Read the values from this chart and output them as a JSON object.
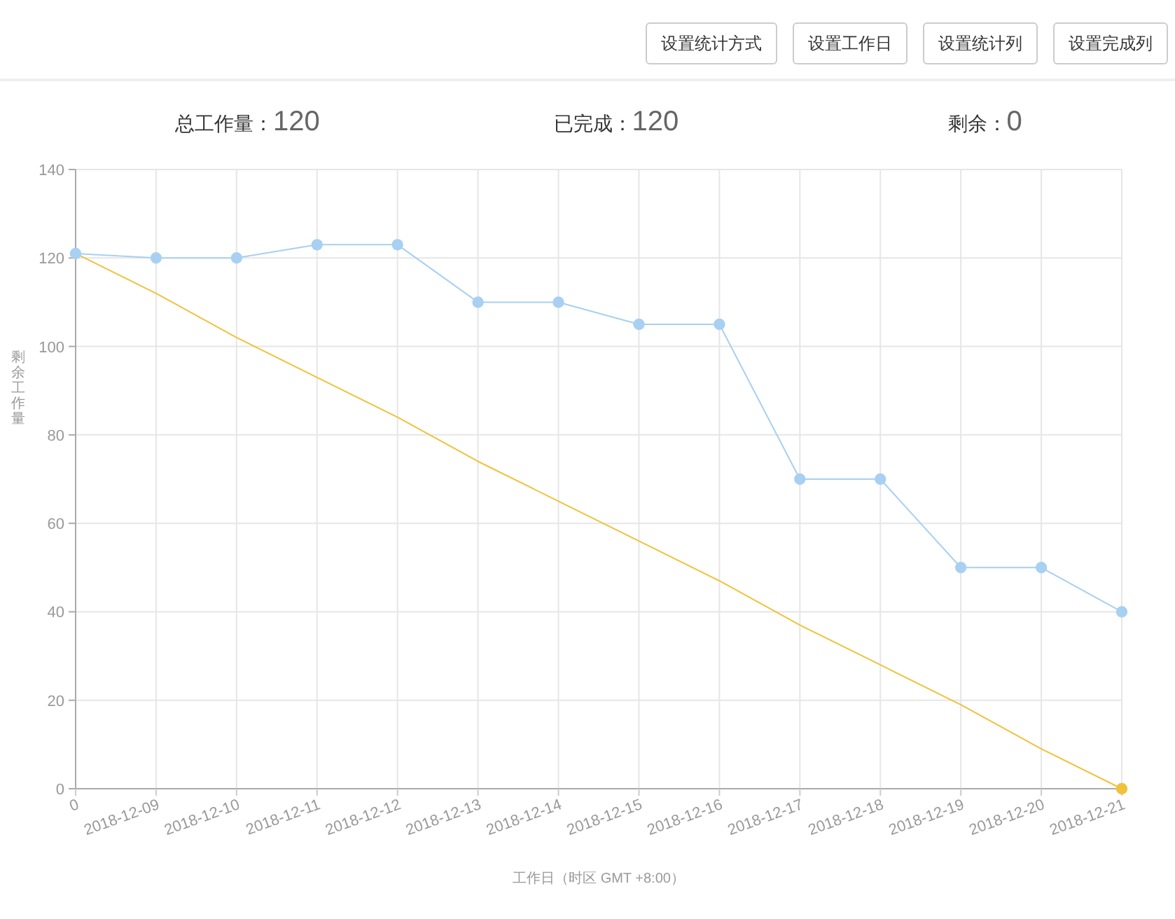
{
  "chart_data": [
    {
      "type": "other",
      "annotations": [
        "设置统计方式",
        "设置工作日",
        "设置统计列",
        "设置完成列"
      ]
    },
    {
      "type": "other",
      "annotations": [
        "总工作量：120",
        "已完成：120",
        "剩余：0"
      ]
    },
    {
      "type": "line",
      "categories": [
        "0",
        "2018-12-09",
        "2018-12-10",
        "2018-12-11",
        "2018-12-12",
        "2018-12-13",
        "2018-12-14",
        "2018-12-15",
        "2018-12-16",
        "2018-12-17",
        "2018-12-18",
        "2018-12-19",
        "2018-12-20",
        "2018-12-21"
      ],
      "xlabel": "工作日（时区 GMT +8:00）",
      "ylabel": "剩余工作量",
      "ylim": [
        0,
        140
      ],
      "yticks": [
        0,
        20,
        40,
        60,
        80,
        100,
        120,
        140
      ],
      "grid": true,
      "line_style": "solid",
      "series": [
        {
          "color": "#f0c23b",
          "values": [
            121,
            112,
            102,
            93,
            84,
            74,
            65,
            56,
            47,
            37,
            28,
            19,
            9,
            0
          ],
          "marker": "none"
        },
        {
          "type": "scatter",
          "color": "#f0c23b",
          "values": [
            null,
            null,
            null,
            null,
            null,
            null,
            null,
            null,
            null,
            null,
            null,
            null,
            null,
            0
          ],
          "marker": "circle"
        },
        {
          "color": "#a8d0f2",
          "values": [
            121,
            120,
            120,
            123,
            123,
            110,
            110,
            105,
            105,
            70,
            70,
            50,
            50,
            40
          ],
          "marker": "circle"
        }
      ]
    }
  ]
}
